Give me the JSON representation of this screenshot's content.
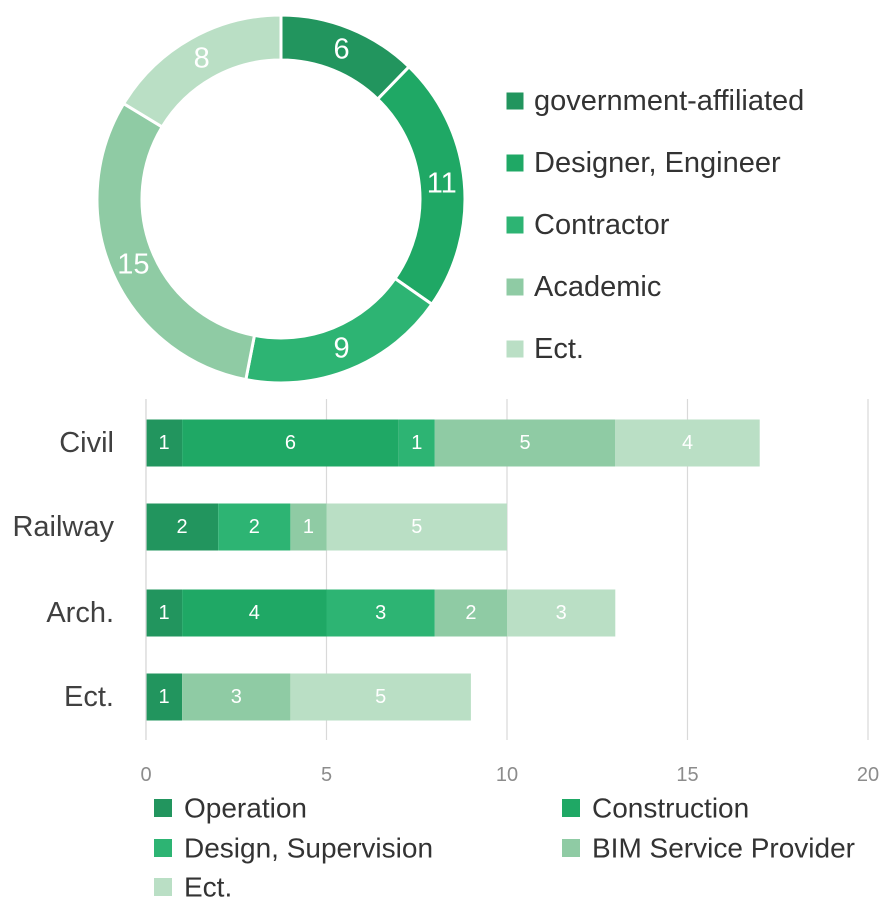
{
  "chart_data": [
    {
      "type": "pie",
      "variant": "donut",
      "legend_position": "right",
      "slices": [
        {
          "label": "government-affiliated",
          "value": 6,
          "color": "#22955e"
        },
        {
          "label": "Designer, Engineer",
          "value": 11,
          "color": "#1fa865"
        },
        {
          "label": "Contractor",
          "value": 9,
          "color": "#2db473"
        },
        {
          "label": "Academic",
          "value": 15,
          "color": "#8fcba4"
        },
        {
          "label": "Ect.",
          "value": 8,
          "color": "#badfc5"
        }
      ]
    },
    {
      "type": "bar",
      "orientation": "horizontal",
      "stacked": true,
      "categories": [
        "Civil",
        "Railway",
        "Arch.",
        "Ect."
      ],
      "xlim": [
        0,
        20
      ],
      "xticks": [
        0,
        5,
        10,
        15,
        20
      ],
      "grid": true,
      "legend_position": "bottom",
      "series": [
        {
          "name": "Operation",
          "color": "#22955e",
          "values": [
            1,
            2,
            1,
            1
          ]
        },
        {
          "name": "Construction",
          "color": "#1fa865",
          "values": [
            6,
            0,
            4,
            0
          ]
        },
        {
          "name": "Design, Supervision",
          "color": "#2db473",
          "values": [
            1,
            2,
            3,
            0
          ]
        },
        {
          "name": "BIM Service Provider",
          "color": "#8fcba4",
          "values": [
            5,
            1,
            2,
            3
          ]
        },
        {
          "name": "Ect.",
          "color": "#badfc5",
          "values": [
            4,
            5,
            3,
            5
          ]
        }
      ]
    }
  ]
}
